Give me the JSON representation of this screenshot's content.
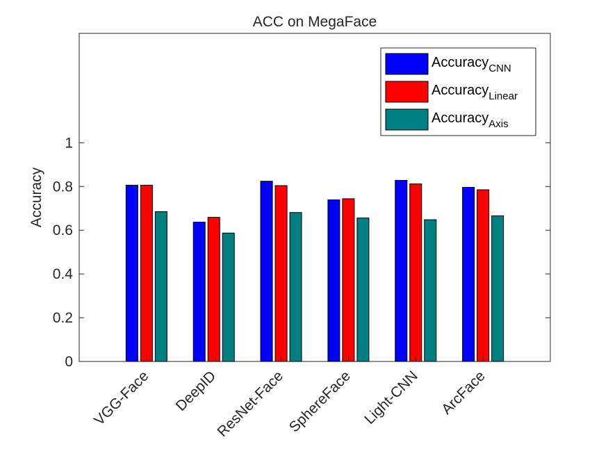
{
  "chart_data": {
    "type": "bar",
    "title": "ACC on MegaFace",
    "xlabel": "",
    "ylabel": "Accuracy",
    "ylim": [
      0,
      1.5
    ],
    "yticks": [
      "0",
      "0.2",
      "0.4",
      "0.6",
      "0.8",
      "1"
    ],
    "categories": [
      "VGG-Face",
      "DeepID",
      "ResNet-Face",
      "SphereFace",
      "Light-CNN",
      "ArcFace"
    ],
    "series": [
      {
        "name": "Accuracy",
        "sub": "CNN",
        "color": "#0000ff",
        "values": [
          0.806,
          0.637,
          0.824,
          0.739,
          0.828,
          0.796
        ]
      },
      {
        "name": "Accuracy",
        "sub": "Linear",
        "color": "#ff0000",
        "values": [
          0.806,
          0.659,
          0.804,
          0.744,
          0.812,
          0.785
        ]
      },
      {
        "name": "Accuracy",
        "sub": "Axis",
        "color": "#008080",
        "values": [
          0.685,
          0.587,
          0.681,
          0.656,
          0.648,
          0.666
        ]
      }
    ],
    "legend_position": "top-right",
    "grid": false
  }
}
